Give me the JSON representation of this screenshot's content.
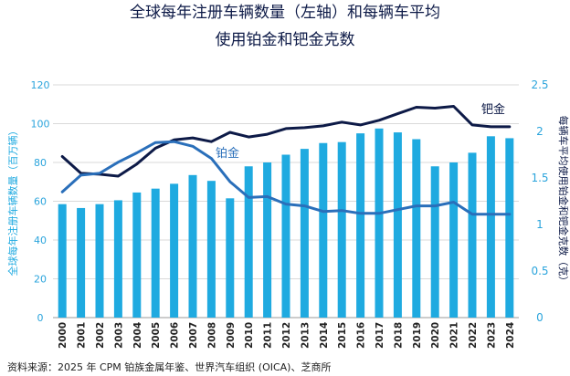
{
  "chart_data": {
    "type": "bar+line",
    "title_lines": [
      "全球每年注册车辆数量（左轴）和每辆车平均",
      "使用铂金和钯金克数"
    ],
    "ylabel_left": "全球每年注册车辆数量（百万辆）",
    "ylabel_right": "每辆车平均使用铂金和钯金克数（克）",
    "ylim_left": [
      0,
      120
    ],
    "yticks_left": [
      "0",
      "20",
      "40",
      "60",
      "80",
      "100",
      "120"
    ],
    "ylim_right": [
      0,
      2.5
    ],
    "yticks_right": [
      "0",
      "0.5",
      "1",
      "1.5",
      "2",
      "2.5"
    ],
    "categories": [
      "2000",
      "2001",
      "2002",
      "2003",
      "2004",
      "2005",
      "2006",
      "2007",
      "2008",
      "2009",
      "2010",
      "2011",
      "2012",
      "2013",
      "2014",
      "2015",
      "2016",
      "2017",
      "2018",
      "2019",
      "2020",
      "2021",
      "2022",
      "2023",
      "2024"
    ],
    "bars": {
      "name": "全球每年注册车辆数量",
      "color": "#1faae0",
      "values": [
        58.5,
        56.5,
        58.5,
        60.5,
        64.5,
        66.5,
        69,
        73.5,
        70.5,
        61.5,
        78,
        80,
        84,
        87,
        90,
        90.5,
        95,
        97.5,
        95.5,
        92,
        78,
        80,
        85,
        93.5,
        92.5
      ]
    },
    "series": [
      {
        "name": "钯金",
        "color": "#0d1a47",
        "values": [
          1.73,
          1.55,
          1.54,
          1.52,
          1.65,
          1.82,
          1.91,
          1.93,
          1.89,
          1.99,
          1.94,
          1.97,
          2.03,
          2.04,
          2.06,
          2.1,
          2.07,
          2.12,
          2.19,
          2.26,
          2.25,
          2.27,
          2.07,
          2.05,
          2.05
        ]
      },
      {
        "name": "铂金",
        "color": "#2a6fba",
        "values": [
          1.35,
          1.53,
          1.55,
          1.67,
          1.77,
          1.88,
          1.89,
          1.84,
          1.71,
          1.46,
          1.29,
          1.3,
          1.22,
          1.2,
          1.14,
          1.15,
          1.12,
          1.12,
          1.16,
          1.2,
          1.2,
          1.24,
          1.11,
          1.11,
          1.11
        ]
      }
    ],
    "grid": "horizontal"
  },
  "source": "资料来源：2025 年 CPM 铂族金属年鉴、世界汽车组织 (OICA)、芝商所"
}
